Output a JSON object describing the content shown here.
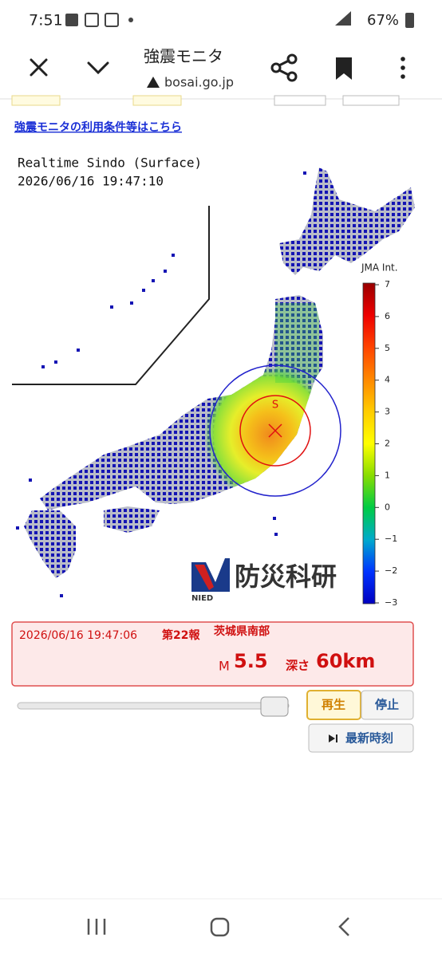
{
  "status_bar": {
    "time": "7:51",
    "battery": "67%"
  },
  "browser": {
    "title": "強震モニタ",
    "url": "bosai.go.jp"
  },
  "link": "強震モニタの利用条件等はこちら",
  "map": {
    "title_lines": [
      "Realtime Sindo (Surface)",
      "2026/06/16 19:47:10"
    ],
    "epicenter_label": "S",
    "logo_text": "防災科研",
    "logo_sub": "NIED",
    "scale": {
      "title": "JMA Int.",
      "labels": [
        "7",
        "6",
        "5",
        "4",
        "3",
        "2",
        "1",
        "0",
        "−1",
        "−2",
        "−3"
      ]
    }
  },
  "report": {
    "time": "2026/06/16 19:47:06",
    "number": "第22報",
    "region": "茨城県南部",
    "magnitude_label": "M",
    "magnitude": 5.5,
    "depth_label": "深さ",
    "depth": "60km"
  },
  "controls": {
    "play": "再生",
    "stop": "停止",
    "latest": "最新時刻"
  }
}
